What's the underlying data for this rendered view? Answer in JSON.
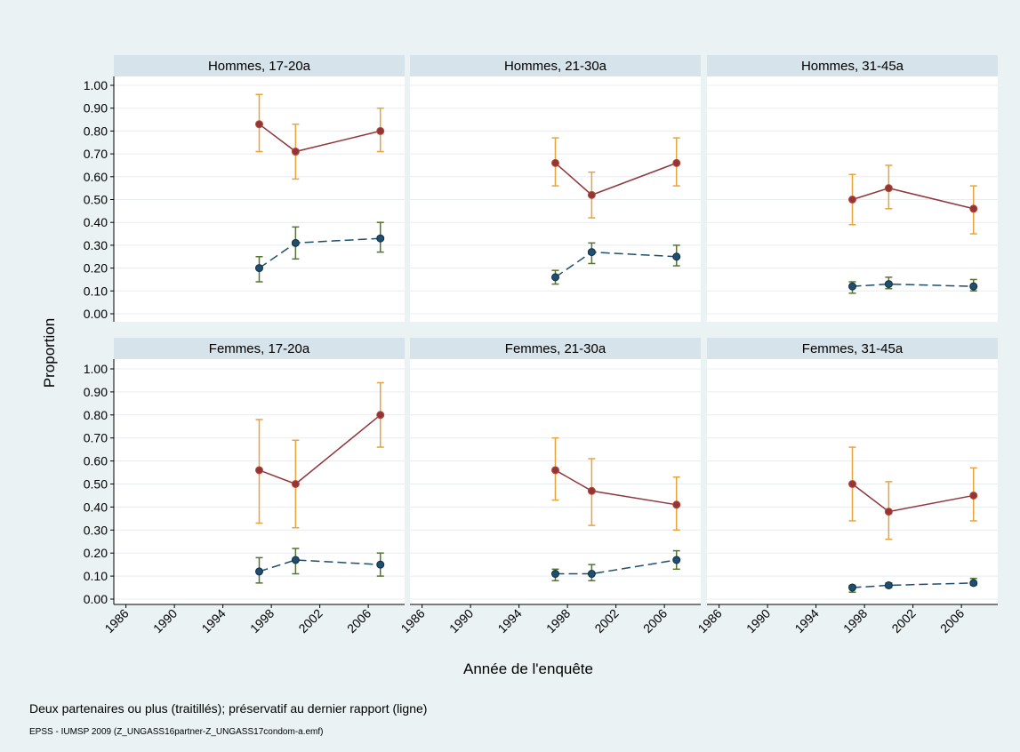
{
  "figure": {
    "ylabel": "Proportion",
    "xlabel": "Année de l'enquête",
    "note": "Deux partenaires ou plus (traitillés); préservatif au dernier rapport (ligne)",
    "source": "EPSS - IUMSP 2009 (Z_UNGASS16partner-Z_UNGASS17condom-a.emf)"
  },
  "colors": {
    "background": "#eaf2f3",
    "panel_header": "#d6e3ea",
    "plot_area": "#ffffff",
    "grid": "#e8ecef",
    "condom_line": "#90353b",
    "condom_ci": "#e8a33d",
    "partners_line": "#1f4e6e",
    "partners_ci": "#55752f"
  },
  "chart_data": [
    {
      "type": "line",
      "title": "Hommes, 17-20a",
      "x_ticks": [
        1986,
        1990,
        1994,
        1998,
        2002,
        2006
      ],
      "xlim": [
        1985,
        2009
      ],
      "ylim": [
        0,
        1
      ],
      "y_ticks": [
        "0.00",
        "0.10",
        "0.20",
        "0.30",
        "0.40",
        "0.50",
        "0.60",
        "0.70",
        "0.80",
        "0.90",
        "1.00"
      ],
      "grid": true,
      "series": [
        {
          "style": "solid",
          "x": [
            1997,
            2000,
            2007
          ],
          "y": [
            0.83,
            0.71,
            0.8
          ],
          "ci_low": [
            0.71,
            0.59,
            0.71
          ],
          "ci_high": [
            0.96,
            0.83,
            0.9
          ]
        },
        {
          "style": "dashed",
          "x": [
            1997,
            2000,
            2007
          ],
          "y": [
            0.2,
            0.31,
            0.33
          ],
          "ci_low": [
            0.14,
            0.24,
            0.27
          ],
          "ci_high": [
            0.25,
            0.38,
            0.4
          ]
        }
      ]
    },
    {
      "type": "line",
      "title": "Hommes, 21-30a",
      "x_ticks": [
        1986,
        1990,
        1994,
        1998,
        2002,
        2006
      ],
      "xlim": [
        1985,
        2009
      ],
      "ylim": [
        0,
        1
      ],
      "grid": true,
      "series": [
        {
          "style": "solid",
          "x": [
            1997,
            2000,
            2007
          ],
          "y": [
            0.66,
            0.52,
            0.66
          ],
          "ci_low": [
            0.56,
            0.42,
            0.56
          ],
          "ci_high": [
            0.77,
            0.62,
            0.77
          ]
        },
        {
          "style": "dashed",
          "x": [
            1997,
            2000,
            2007
          ],
          "y": [
            0.16,
            0.27,
            0.25
          ],
          "ci_low": [
            0.13,
            0.22,
            0.21
          ],
          "ci_high": [
            0.19,
            0.31,
            0.3
          ]
        }
      ]
    },
    {
      "type": "line",
      "title": "Hommes, 31-45a",
      "x_ticks": [
        1986,
        1990,
        1994,
        1998,
        2002,
        2006
      ],
      "xlim": [
        1985,
        2009
      ],
      "ylim": [
        0,
        1
      ],
      "grid": true,
      "series": [
        {
          "style": "solid",
          "x": [
            1997,
            2000,
            2007
          ],
          "y": [
            0.5,
            0.55,
            0.46
          ],
          "ci_low": [
            0.39,
            0.46,
            0.35
          ],
          "ci_high": [
            0.61,
            0.65,
            0.56
          ]
        },
        {
          "style": "dashed",
          "x": [
            1997,
            2000,
            2007
          ],
          "y": [
            0.12,
            0.13,
            0.12
          ],
          "ci_low": [
            0.09,
            0.11,
            0.1
          ],
          "ci_high": [
            0.14,
            0.16,
            0.15
          ]
        }
      ]
    },
    {
      "type": "line",
      "title": "Femmes, 17-20a",
      "x_ticks": [
        1986,
        1990,
        1994,
        1998,
        2002,
        2006
      ],
      "xlim": [
        1985,
        2009
      ],
      "ylim": [
        0,
        1
      ],
      "y_ticks": [
        "0.00",
        "0.10",
        "0.20",
        "0.30",
        "0.40",
        "0.50",
        "0.60",
        "0.70",
        "0.80",
        "0.90",
        "1.00"
      ],
      "grid": true,
      "series": [
        {
          "style": "solid",
          "x": [
            1997,
            2000,
            2007
          ],
          "y": [
            0.56,
            0.5,
            0.8
          ],
          "ci_low": [
            0.33,
            0.31,
            0.66
          ],
          "ci_high": [
            0.78,
            0.69,
            0.94
          ]
        },
        {
          "style": "dashed",
          "x": [
            1997,
            2000,
            2007
          ],
          "y": [
            0.12,
            0.17,
            0.15
          ],
          "ci_low": [
            0.07,
            0.11,
            0.1
          ],
          "ci_high": [
            0.18,
            0.22,
            0.2
          ]
        }
      ]
    },
    {
      "type": "line",
      "title": "Femmes, 21-30a",
      "x_ticks": [
        1986,
        1990,
        1994,
        1998,
        2002,
        2006
      ],
      "xlim": [
        1985,
        2009
      ],
      "ylim": [
        0,
        1
      ],
      "grid": true,
      "series": [
        {
          "style": "solid",
          "x": [
            1997,
            2000,
            2007
          ],
          "y": [
            0.56,
            0.47,
            0.41
          ],
          "ci_low": [
            0.43,
            0.32,
            0.3
          ],
          "ci_high": [
            0.7,
            0.61,
            0.53
          ]
        },
        {
          "style": "dashed",
          "x": [
            1997,
            2000,
            2007
          ],
          "y": [
            0.11,
            0.11,
            0.17
          ],
          "ci_low": [
            0.08,
            0.08,
            0.13
          ],
          "ci_high": [
            0.13,
            0.15,
            0.21
          ]
        }
      ]
    },
    {
      "type": "line",
      "title": "Femmes, 31-45a",
      "x_ticks": [
        1986,
        1990,
        1994,
        1998,
        2002,
        2006
      ],
      "xlim": [
        1985,
        2009
      ],
      "ylim": [
        0,
        1
      ],
      "grid": true,
      "series": [
        {
          "style": "solid",
          "x": [
            1997,
            2000,
            2007
          ],
          "y": [
            0.5,
            0.38,
            0.45
          ],
          "ci_low": [
            0.34,
            0.26,
            0.34
          ],
          "ci_high": [
            0.66,
            0.51,
            0.57
          ]
        },
        {
          "style": "dashed",
          "x": [
            1997,
            2000,
            2007
          ],
          "y": [
            0.05,
            0.06,
            0.07
          ],
          "ci_low": [
            0.03,
            0.05,
            0.06
          ],
          "ci_high": [
            0.06,
            0.07,
            0.09
          ]
        }
      ]
    }
  ]
}
